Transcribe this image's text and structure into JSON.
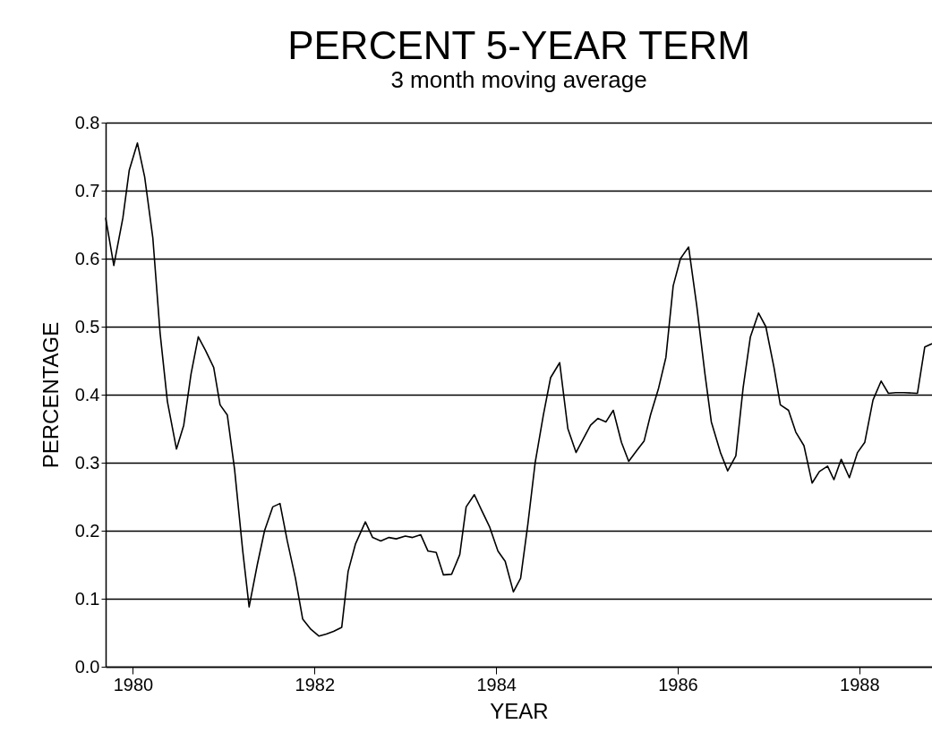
{
  "chart_data": {
    "type": "line",
    "title": "PERCENT  5-YEAR TERM",
    "subtitle": "3 month moving average",
    "xlabel": "YEAR",
    "ylabel": "PERCENTAGE",
    "x": [
      1979.7,
      1979.79,
      1979.89,
      1979.96,
      1980.05,
      1980.13,
      1980.22,
      1980.3,
      1980.38,
      1980.48,
      1980.56,
      1980.64,
      1980.72,
      1980.8,
      1980.89,
      1980.96,
      1981.04,
      1981.12,
      1981.21,
      1981.28,
      1981.37,
      1981.45,
      1981.54,
      1981.62,
      1981.7,
      1981.79,
      1981.87,
      1981.96,
      1982.05,
      1982.13,
      1982.21,
      1982.3,
      1982.37,
      1982.45,
      1982.56,
      1982.64,
      1982.73,
      1982.82,
      1982.9,
      1983.0,
      1983.08,
      1983.17,
      1983.25,
      1983.34,
      1983.42,
      1983.51,
      1983.6,
      1983.67,
      1983.76,
      1983.84,
      1983.93,
      1984.02,
      1984.1,
      1984.19,
      1984.27,
      1984.35,
      1984.43,
      1984.52,
      1984.6,
      1984.7,
      1984.79,
      1984.88,
      1984.96,
      1985.04,
      1985.12,
      1985.21,
      1985.29,
      1985.38,
      1985.46,
      1985.55,
      1985.63,
      1985.7,
      1985.79,
      1985.87,
      1985.95,
      1986.03,
      1986.12,
      1986.21,
      1986.3,
      1986.37,
      1986.47,
      1986.55,
      1986.64,
      1986.72,
      1986.8,
      1986.89,
      1986.97,
      1987.06,
      1987.13,
      1987.22,
      1987.3,
      1987.39,
      1987.48,
      1987.56,
      1987.65,
      1987.72,
      1987.8,
      1987.89,
      1987.98,
      1988.06,
      1988.15,
      1988.24,
      1988.32,
      1988.4,
      1988.49,
      1988.64,
      1988.72,
      1988.8
    ],
    "series": [
      {
        "color": "#000000",
        "values": [
          0.66,
          0.59,
          0.66,
          0.73,
          0.77,
          0.72,
          0.63,
          0.49,
          0.39,
          0.32,
          0.355,
          0.43,
          0.485,
          0.465,
          0.44,
          0.385,
          0.37,
          0.29,
          0.17,
          0.088,
          0.15,
          0.2,
          0.235,
          0.24,
          0.185,
          0.13,
          0.07,
          0.055,
          0.045,
          0.048,
          0.052,
          0.058,
          0.14,
          0.18,
          0.213,
          0.19,
          0.185,
          0.19,
          0.188,
          0.192,
          0.19,
          0.194,
          0.17,
          0.168,
          0.135,
          0.136,
          0.165,
          0.235,
          0.253,
          0.23,
          0.205,
          0.17,
          0.155,
          0.11,
          0.13,
          0.21,
          0.3,
          0.37,
          0.425,
          0.447,
          0.35,
          0.315,
          0.335,
          0.355,
          0.365,
          0.36,
          0.377,
          0.33,
          0.302,
          0.318,
          0.332,
          0.37,
          0.41,
          0.455,
          0.56,
          0.6,
          0.617,
          0.53,
          0.43,
          0.36,
          0.315,
          0.288,
          0.31,
          0.41,
          0.485,
          0.52,
          0.5,
          0.44,
          0.385,
          0.377,
          0.345,
          0.325,
          0.27,
          0.287,
          0.295,
          0.275,
          0.305,
          0.278,
          0.315,
          0.33,
          0.392,
          0.42,
          0.402,
          0.403,
          0.403,
          0.402,
          0.47,
          0.475
        ]
      }
    ],
    "xlim": [
      1979.7,
      1988.8
    ],
    "xticks": [
      1980,
      1982,
      1984,
      1986,
      1988
    ],
    "ylim": [
      0,
      0.8
    ],
    "yticks": [
      {
        "value": 0,
        "label": "0.0"
      },
      0.1,
      0.2,
      0.3,
      0.4,
      0.5,
      0.6,
      0.7,
      0.8
    ],
    "grid": "y"
  }
}
